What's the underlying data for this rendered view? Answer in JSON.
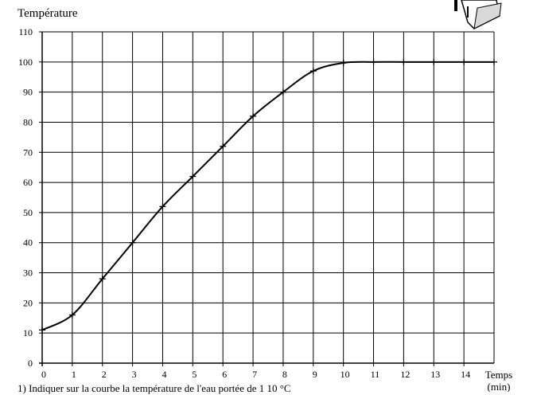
{
  "chart_data": {
    "type": "line",
    "ylabel": "Température",
    "xlabel_line1": "Temps",
    "xlabel_line2": "(min)",
    "xlim": [
      0,
      15
    ],
    "ylim": [
      0,
      110
    ],
    "x_ticks": [
      0,
      1,
      2,
      3,
      4,
      5,
      6,
      7,
      8,
      9,
      10,
      11,
      12,
      13,
      14
    ],
    "y_ticks": [
      0,
      10,
      20,
      30,
      40,
      50,
      60,
      70,
      80,
      90,
      100,
      110
    ],
    "grid": true,
    "series": [
      {
        "x": [
          0,
          1,
          2,
          3,
          4,
          5,
          6,
          7,
          8,
          9,
          10,
          11,
          12,
          13,
          14,
          15
        ],
        "values": [
          11,
          16,
          28,
          40,
          52,
          62,
          72,
          82,
          90,
          97,
          99.7,
          100,
          100,
          100,
          100,
          100
        ]
      }
    ]
  },
  "footer": {
    "text": "1) Indiquer sur la courbe la température de l'eau portée de 1 10 °C"
  },
  "icon": {
    "name": "kettle-icon"
  },
  "colors": {
    "line": "#000000",
    "grid": "#000000",
    "background": "#ffffff"
  }
}
